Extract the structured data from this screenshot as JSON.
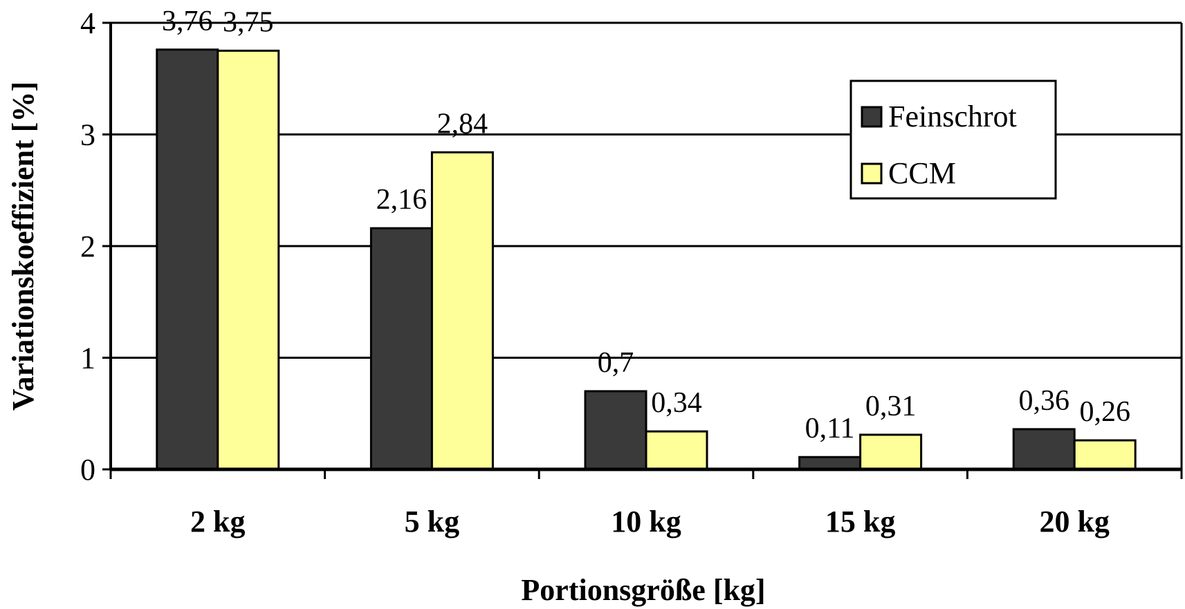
{
  "chart_data": {
    "type": "bar",
    "title": "",
    "xlabel": "Portionsgröße [kg]",
    "ylabel": "Variationskoeffizient [%]",
    "ylim": [
      0,
      4
    ],
    "yticks": [
      "0",
      "1",
      "2",
      "3",
      "4"
    ],
    "grid": true,
    "legend_position": "top-right",
    "categories": [
      "2 kg",
      "5 kg",
      "10 kg",
      "15 kg",
      "20 kg"
    ],
    "series": [
      {
        "name": "Feinschrot",
        "color": "#3a3a3a",
        "values": [
          3.76,
          2.16,
          0.7,
          0.11,
          0.36
        ],
        "labels": [
          "3,76",
          "2,16",
          "0,7",
          "0,11",
          "0,36"
        ]
      },
      {
        "name": "CCM",
        "color": "#ffff99",
        "values": [
          3.75,
          2.84,
          0.34,
          0.31,
          0.26
        ],
        "labels": [
          "3,75",
          "2,84",
          "0,34",
          "0,31",
          "0,26"
        ]
      }
    ]
  }
}
